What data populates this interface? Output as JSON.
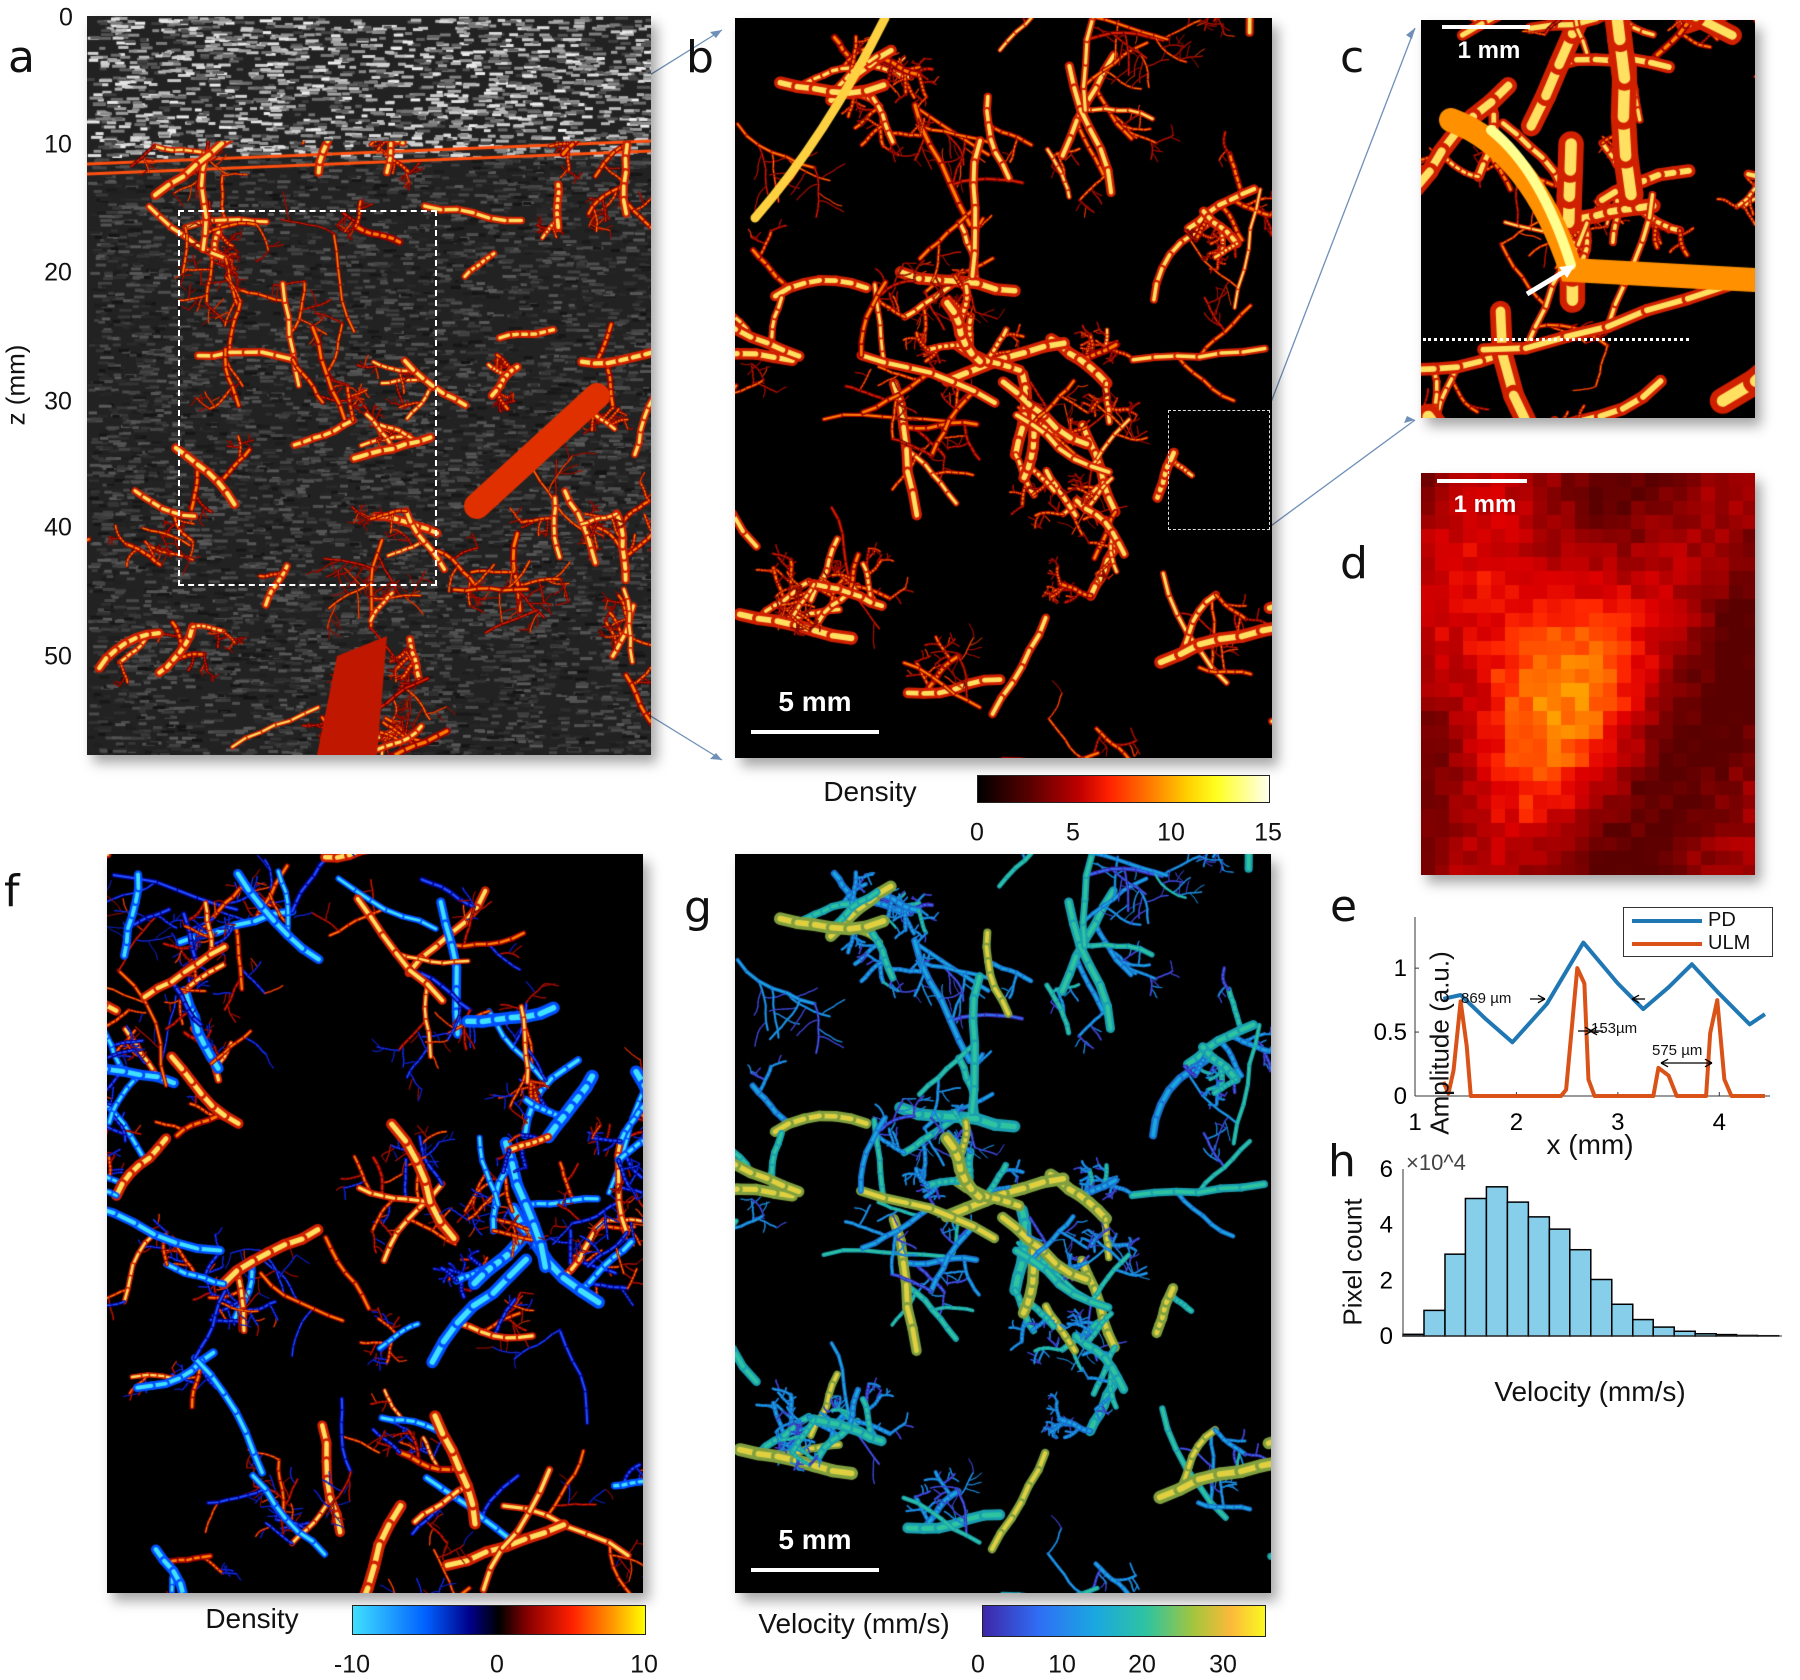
{
  "panel_labels": {
    "a": "a",
    "b": "b",
    "c": "c",
    "d": "d",
    "e": "e",
    "f": "f",
    "g": "g",
    "h": "h"
  },
  "panel_a": {
    "ylabel": "z (mm)",
    "yticks": [
      "0",
      "10",
      "20",
      "30",
      "40",
      "50"
    ],
    "description_colors": {
      "vessel": "#ff3000",
      "background": "#2a2a2a"
    }
  },
  "panel_b": {
    "scale_bar": "5 mm"
  },
  "panel_c": {
    "scale_bar": "1 mm"
  },
  "panel_d": {
    "scale_bar": "1 mm"
  },
  "panel_g": {
    "scale_bar": "5 mm"
  },
  "colorbar_b": {
    "label": "Density",
    "ticks": [
      "0",
      "5",
      "10",
      "15"
    ],
    "colormap": "hot",
    "range": [
      0,
      15
    ]
  },
  "colorbar_f": {
    "label": "Density",
    "ticks": [
      "-10",
      "0",
      "10"
    ],
    "colormap": "cyan-blue-black-red-yellow",
    "range": [
      -10,
      10
    ]
  },
  "colorbar_g": {
    "label": "Velocity (mm/s)",
    "ticks": [
      "0",
      "10",
      "20",
      "30"
    ],
    "colormap": "parula",
    "range": [
      0,
      35
    ]
  },
  "chart_data": [
    {
      "panel": "e",
      "type": "line",
      "xlabel": "x (mm)",
      "ylabel": "Amplitude (a.u.)",
      "xlim": [
        1,
        4.5
      ],
      "ylim": [
        0,
        1.4
      ],
      "xticks": [
        "1",
        "2",
        "3",
        "4"
      ],
      "yticks": [
        "0",
        "0.5",
        "1"
      ],
      "legend_position": "top-right",
      "series": [
        {
          "name": "PD",
          "color": "#1f77b4",
          "x": [
            1.28,
            1.45,
            1.7,
            1.96,
            2.3,
            2.66,
            3.0,
            3.25,
            3.5,
            3.73,
            4.0,
            4.3,
            4.45
          ],
          "y": [
            0.76,
            0.79,
            0.6,
            0.42,
            0.72,
            1.2,
            0.88,
            0.68,
            0.85,
            1.03,
            0.8,
            0.56,
            0.64
          ]
        },
        {
          "name": "ULM",
          "color": "#d95319",
          "x": [
            1.28,
            1.33,
            1.38,
            1.45,
            1.51,
            1.55,
            2.44,
            2.49,
            2.6,
            2.67,
            2.71,
            2.77,
            3.35,
            3.4,
            3.5,
            3.58,
            3.87,
            3.91,
            3.98,
            4.05,
            4.12,
            4.45
          ],
          "y": [
            0.11,
            0.02,
            0.2,
            0.74,
            0.39,
            0,
            0,
            0.05,
            1.0,
            0.88,
            0.13,
            0,
            0,
            0.22,
            0.16,
            0,
            0,
            0.49,
            0.75,
            0.13,
            0,
            0
          ]
        }
      ],
      "annotations": [
        "869 µm",
        "153µm",
        "575 µm"
      ]
    },
    {
      "panel": "h",
      "type": "bar",
      "xlabel": "Velocity (mm/s)",
      "ylabel": "Pixel count",
      "y_multiplier": "×10^4",
      "xlim": [
        -1.8,
        65
      ],
      "ylim": [
        0,
        6
      ],
      "xticks": [
        "0",
        "20",
        "40",
        "60"
      ],
      "yticks": [
        "0",
        "2",
        "4",
        "6"
      ],
      "bar_color": "#87ceeb",
      "bin_edges": [
        -1.8,
        1.9,
        5.6,
        9.2,
        12.9,
        16.6,
        20.3,
        24,
        27.6,
        31.3,
        35,
        38.7,
        42.3,
        46,
        49.7,
        53.4,
        57,
        60.7,
        64.4
      ],
      "values": [
        0.06,
        0.92,
        2.94,
        4.94,
        5.36,
        4.81,
        4.28,
        3.84,
        3.1,
        2.03,
        1.14,
        0.59,
        0.32,
        0.17,
        0.08,
        0.05,
        0.02,
        0.01
      ]
    }
  ]
}
